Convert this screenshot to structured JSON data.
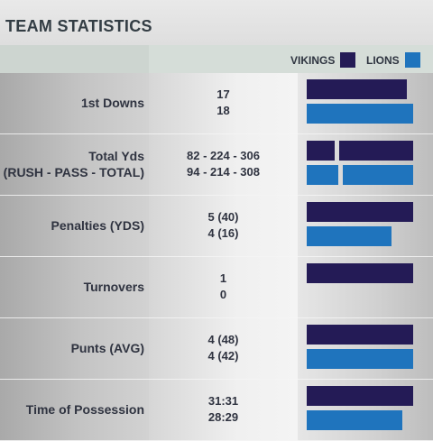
{
  "title": "TEAM STATISTICS",
  "legend": {
    "home": {
      "label": "VIKINGS",
      "color": "#241b56"
    },
    "away": {
      "label": "LIONS",
      "color": "#1f74bd"
    }
  },
  "rows": [
    {
      "label": [
        "1st Downs"
      ],
      "vikings": "17",
      "lions": "18",
      "vikings_share": [
        0.94
      ],
      "lions_share": [
        1.0
      ]
    },
    {
      "label": [
        "Total Yds",
        "(RUSH - PASS - TOTAL)"
      ],
      "vikings": "82 - 224 - 306",
      "lions": "94 - 214 - 308",
      "vikings_share": [
        0.27,
        0.73
      ],
      "lions_share": [
        0.31,
        0.69
      ]
    },
    {
      "label": [
        "Penalties (YDS)"
      ],
      "vikings": "5 (40)",
      "lions": "4 (16)",
      "vikings_share": [
        1.0
      ],
      "lions_share": [
        0.8
      ]
    },
    {
      "label": [
        "Turnovers"
      ],
      "vikings": "1",
      "lions": "0",
      "vikings_share": [
        1.0
      ],
      "lions_share": [
        0.0
      ]
    },
    {
      "label": [
        "Punts (AVG)"
      ],
      "vikings": "4 (48)",
      "lions": "4 (42)",
      "vikings_share": [
        1.0
      ],
      "lions_share": [
        1.0
      ]
    },
    {
      "label": [
        "Time of Possession"
      ],
      "vikings": "31:31",
      "lions": "28:29",
      "vikings_share": [
        1.0
      ],
      "lions_share": [
        0.9
      ]
    }
  ]
}
